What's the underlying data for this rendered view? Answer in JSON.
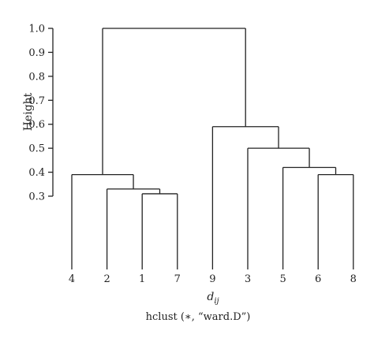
{
  "chart_data": {
    "type": "dendrogram",
    "ylabel": "Height",
    "xlabel": {
      "main": "d",
      "subscript": "ij"
    },
    "subtitle": "hclust (∗, “ward.D”)",
    "y_ticks": [
      0.3,
      0.4,
      0.5,
      0.6,
      0.7,
      0.8,
      0.9,
      1.0
    ],
    "y_tick_labels": [
      "0.3",
      "0.4",
      "0.5",
      "0.6",
      "0.7",
      "0.8",
      "0.9",
      "1.0"
    ],
    "ylim": [
      0.3,
      1.0
    ],
    "leaf_order": [
      "4",
      "2",
      "1",
      "7",
      "9",
      "3",
      "5",
      "6",
      "8"
    ],
    "merges": [
      {
        "left": "1",
        "right": "7",
        "height": 0.31
      },
      {
        "left": "2",
        "right": "1+7",
        "height": 0.33
      },
      {
        "left": "4",
        "right": "2+1+7",
        "height": 0.39
      },
      {
        "left": "6",
        "right": "8",
        "height": 0.39
      },
      {
        "left": "5",
        "right": "6+8",
        "height": 0.42
      },
      {
        "left": "3",
        "right": "5+6+8",
        "height": 0.5
      },
      {
        "left": "9",
        "right": "3+5+6+8",
        "height": 0.59
      },
      {
        "left": "4+2+1+7",
        "right": "9+3+5+6+8",
        "height": 1.0
      }
    ],
    "grid": false,
    "line_color": "#222222"
  }
}
